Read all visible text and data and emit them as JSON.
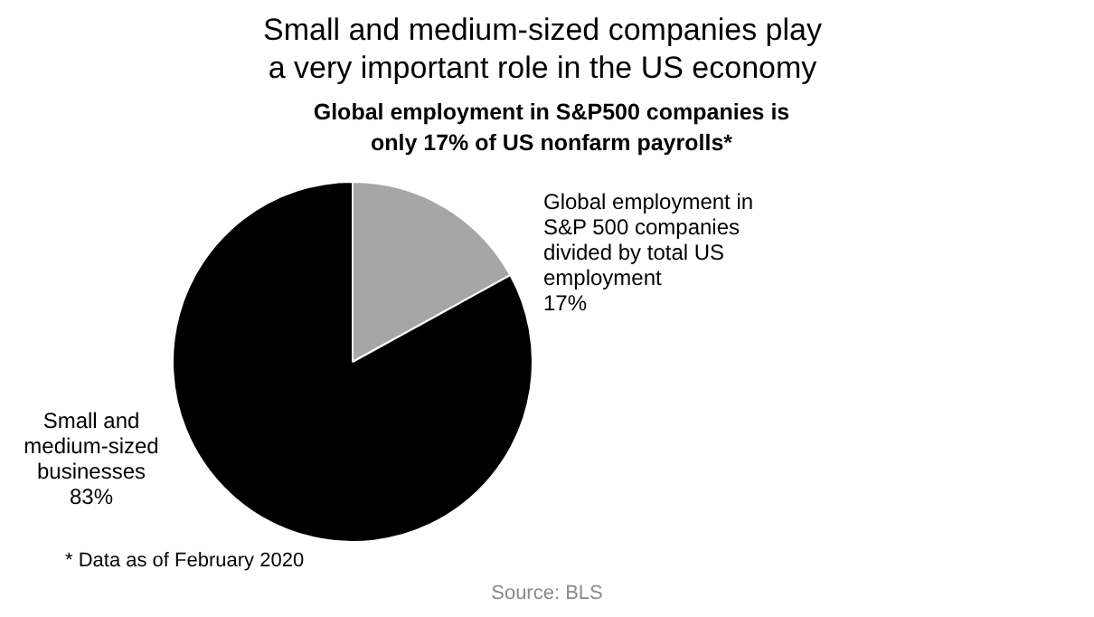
{
  "chart_data": {
    "type": "pie",
    "title": "Small and medium-sized companies play a very important role in the US economy",
    "subtitle": "Global employment in S&P500 companies is only 17% of US nonfarm payrolls*",
    "categories": [
      "Global employment in S&P 500 companies divided by total US employment",
      "Small and medium-sized businesses"
    ],
    "values": [
      17,
      83
    ],
    "colors": [
      "#a6a6a6",
      "#000000"
    ],
    "value_labels": [
      "17%",
      "83%"
    ],
    "annotations": [
      "* Data as of  February 2020",
      "Source: BLS"
    ]
  }
}
